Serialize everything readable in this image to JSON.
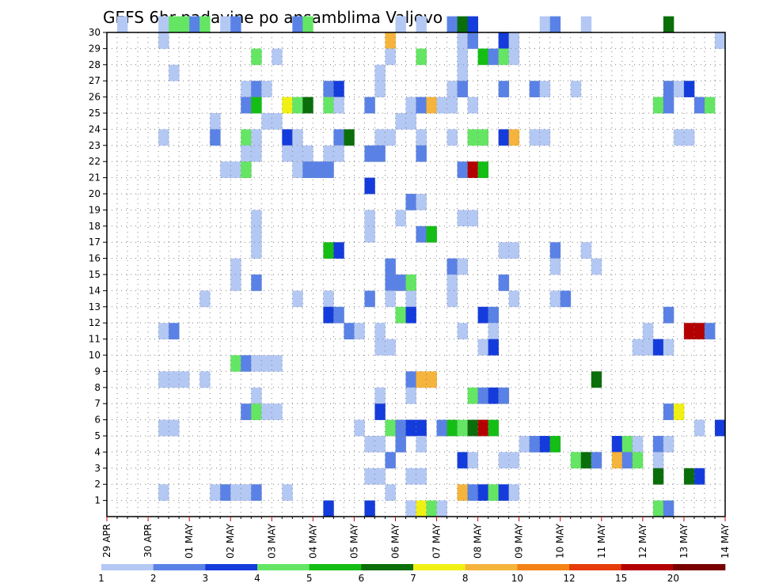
{
  "chart_data": {
    "type": "heatmap",
    "title": "GEFS 6hr padavine po ansamblima Valjevo",
    "xlabel": "",
    "ylabel": "",
    "x_ticks": [
      "29 APR",
      "30 APR",
      "01 MAY",
      "02 MAY",
      "03 MAY",
      "04 MAY",
      "05 MAY",
      "06 MAY",
      "07 MAY",
      "08 MAY",
      "09 MAY",
      "10 MAY",
      "11 MAY",
      "12 MAY",
      "13 MAY",
      "14 MAY"
    ],
    "y_ticks": [
      "1",
      "2",
      "3",
      "4",
      "5",
      "6",
      "7",
      "8",
      "9",
      "10",
      "11",
      "12",
      "13",
      "14",
      "15",
      "16",
      "17",
      "18",
      "19",
      "20",
      "21",
      "22",
      "23",
      "24",
      "25",
      "26",
      "27",
      "28",
      "29",
      "30"
    ],
    "x_range": [
      0,
      60
    ],
    "y_range": [
      0,
      30
    ],
    "grid": true,
    "colorbar": {
      "labels": [
        "1",
        "2",
        "3",
        "4",
        "5",
        "6",
        "7",
        "8",
        "10",
        "12",
        "15",
        "20"
      ],
      "colors": [
        "#b4c8f4",
        "#5a82e6",
        "#143cdc",
        "#64e664",
        "#14be14",
        "#0a6e0a",
        "#f0f014",
        "#f5b43c",
        "#f58214",
        "#e63c0a",
        "#b40000",
        "#7a0000"
      ]
    },
    "cells": [
      [
        1,
        30,
        0
      ],
      [
        5,
        30,
        0
      ],
      [
        6,
        30,
        3
      ],
      [
        7,
        30,
        3
      ],
      [
        8,
        30,
        1
      ],
      [
        9,
        30,
        3
      ],
      [
        11,
        30,
        0
      ],
      [
        12,
        30,
        1
      ],
      [
        18,
        30,
        1
      ],
      [
        19,
        30,
        3
      ],
      [
        28,
        30,
        0
      ],
      [
        30,
        30,
        0
      ],
      [
        33,
        30,
        1
      ],
      [
        34,
        30,
        5
      ],
      [
        35,
        30,
        2
      ],
      [
        42,
        30,
        0
      ],
      [
        43,
        30,
        1
      ],
      [
        46,
        30,
        0
      ],
      [
        54,
        30,
        5
      ],
      [
        5,
        29,
        0
      ],
      [
        27,
        29,
        7
      ],
      [
        34,
        29,
        0
      ],
      [
        35,
        29,
        1
      ],
      [
        38,
        29,
        2
      ],
      [
        39,
        29,
        0
      ],
      [
        59,
        29,
        0
      ],
      [
        14,
        28,
        3
      ],
      [
        16,
        28,
        0
      ],
      [
        27,
        28,
        0
      ],
      [
        30,
        28,
        3
      ],
      [
        34,
        28,
        0
      ],
      [
        36,
        28,
        4
      ],
      [
        37,
        28,
        1
      ],
      [
        38,
        28,
        3
      ],
      [
        39,
        28,
        0
      ],
      [
        6,
        27,
        0
      ],
      [
        26,
        27,
        0
      ],
      [
        34,
        27,
        0
      ],
      [
        13,
        26,
        0
      ],
      [
        14,
        26,
        1
      ],
      [
        15,
        26,
        0
      ],
      [
        21,
        26,
        1
      ],
      [
        22,
        26,
        2
      ],
      [
        26,
        26,
        0
      ],
      [
        33,
        26,
        0
      ],
      [
        34,
        26,
        1
      ],
      [
        38,
        26,
        1
      ],
      [
        41,
        26,
        1
      ],
      [
        42,
        26,
        0
      ],
      [
        45,
        26,
        0
      ],
      [
        54,
        26,
        1
      ],
      [
        55,
        26,
        0
      ],
      [
        56,
        26,
        2
      ],
      [
        13,
        25,
        1
      ],
      [
        14,
        25,
        4
      ],
      [
        17,
        25,
        6
      ],
      [
        18,
        25,
        3
      ],
      [
        19,
        25,
        5
      ],
      [
        21,
        25,
        3
      ],
      [
        22,
        25,
        0
      ],
      [
        25,
        25,
        1
      ],
      [
        29,
        25,
        0
      ],
      [
        30,
        25,
        1
      ],
      [
        31,
        25,
        7
      ],
      [
        32,
        25,
        0
      ],
      [
        33,
        25,
        0
      ],
      [
        35,
        25,
        0
      ],
      [
        53,
        25,
        3
      ],
      [
        54,
        25,
        1
      ],
      [
        57,
        25,
        1
      ],
      [
        58,
        25,
        3
      ],
      [
        10,
        24,
        0
      ],
      [
        15,
        24,
        0
      ],
      [
        16,
        24,
        0
      ],
      [
        28,
        24,
        0
      ],
      [
        29,
        24,
        0
      ],
      [
        5,
        23,
        0
      ],
      [
        10,
        23,
        1
      ],
      [
        13,
        23,
        3
      ],
      [
        14,
        23,
        0
      ],
      [
        17,
        23,
        2
      ],
      [
        18,
        23,
        0
      ],
      [
        22,
        23,
        1
      ],
      [
        23,
        23,
        5
      ],
      [
        26,
        23,
        0
      ],
      [
        27,
        23,
        0
      ],
      [
        30,
        23,
        0
      ],
      [
        33,
        23,
        0
      ],
      [
        35,
        23,
        3
      ],
      [
        36,
        23,
        3
      ],
      [
        38,
        23,
        2
      ],
      [
        39,
        23,
        7
      ],
      [
        41,
        23,
        0
      ],
      [
        42,
        23,
        0
      ],
      [
        55,
        23,
        0
      ],
      [
        56,
        23,
        0
      ],
      [
        13,
        22,
        0
      ],
      [
        14,
        22,
        0
      ],
      [
        17,
        22,
        0
      ],
      [
        18,
        22,
        0
      ],
      [
        19,
        22,
        0
      ],
      [
        21,
        22,
        0
      ],
      [
        22,
        22,
        0
      ],
      [
        25,
        22,
        1
      ],
      [
        26,
        22,
        1
      ],
      [
        30,
        22,
        1
      ],
      [
        11,
        21,
        0
      ],
      [
        12,
        21,
        0
      ],
      [
        13,
        21,
        3
      ],
      [
        18,
        21,
        0
      ],
      [
        19,
        21,
        1
      ],
      [
        20,
        21,
        1
      ],
      [
        21,
        21,
        1
      ],
      [
        34,
        21,
        1
      ],
      [
        35,
        21,
        10
      ],
      [
        36,
        21,
        4
      ],
      [
        25,
        20,
        2
      ],
      [
        29,
        19,
        1
      ],
      [
        30,
        19,
        0
      ],
      [
        14,
        18,
        0
      ],
      [
        25,
        18,
        0
      ],
      [
        28,
        18,
        0
      ],
      [
        34,
        18,
        0
      ],
      [
        35,
        18,
        0
      ],
      [
        14,
        17,
        0
      ],
      [
        25,
        17,
        0
      ],
      [
        30,
        17,
        1
      ],
      [
        31,
        17,
        4
      ],
      [
        14,
        16,
        0
      ],
      [
        21,
        16,
        4
      ],
      [
        22,
        16,
        2
      ],
      [
        38,
        16,
        0
      ],
      [
        39,
        16,
        0
      ],
      [
        43,
        16,
        1
      ],
      [
        46,
        16,
        0
      ],
      [
        12,
        15,
        0
      ],
      [
        27,
        15,
        1
      ],
      [
        33,
        15,
        1
      ],
      [
        34,
        15,
        0
      ],
      [
        43,
        15,
        0
      ],
      [
        47,
        15,
        0
      ],
      [
        12,
        14,
        0
      ],
      [
        14,
        14,
        1
      ],
      [
        27,
        14,
        1
      ],
      [
        28,
        14,
        1
      ],
      [
        29,
        14,
        3
      ],
      [
        33,
        14,
        0
      ],
      [
        38,
        14,
        1
      ],
      [
        9,
        13,
        0
      ],
      [
        18,
        13,
        0
      ],
      [
        21,
        13,
        0
      ],
      [
        25,
        13,
        1
      ],
      [
        27,
        13,
        0
      ],
      [
        29,
        13,
        0
      ],
      [
        33,
        13,
        0
      ],
      [
        39,
        13,
        0
      ],
      [
        43,
        13,
        0
      ],
      [
        44,
        13,
        1
      ],
      [
        21,
        12,
        2
      ],
      [
        22,
        12,
        1
      ],
      [
        28,
        12,
        3
      ],
      [
        29,
        12,
        2
      ],
      [
        36,
        12,
        2
      ],
      [
        37,
        12,
        1
      ],
      [
        54,
        12,
        1
      ],
      [
        5,
        11,
        0
      ],
      [
        6,
        11,
        1
      ],
      [
        23,
        11,
        1
      ],
      [
        24,
        11,
        0
      ],
      [
        26,
        11,
        0
      ],
      [
        34,
        11,
        0
      ],
      [
        37,
        11,
        0
      ],
      [
        52,
        11,
        0
      ],
      [
        56,
        11,
        10
      ],
      [
        57,
        11,
        10
      ],
      [
        58,
        11,
        1
      ],
      [
        26,
        10,
        0
      ],
      [
        27,
        10,
        0
      ],
      [
        36,
        10,
        0
      ],
      [
        37,
        10,
        2
      ],
      [
        51,
        10,
        0
      ],
      [
        52,
        10,
        0
      ],
      [
        53,
        10,
        2
      ],
      [
        54,
        10,
        0
      ],
      [
        12,
        9,
        3
      ],
      [
        13,
        9,
        1
      ],
      [
        14,
        9,
        0
      ],
      [
        15,
        9,
        0
      ],
      [
        16,
        9,
        0
      ],
      [
        5,
        8,
        0
      ],
      [
        6,
        8,
        0
      ],
      [
        7,
        8,
        0
      ],
      [
        9,
        8,
        0
      ],
      [
        29,
        8,
        1
      ],
      [
        30,
        8,
        7
      ],
      [
        31,
        8,
        7
      ],
      [
        47,
        8,
        5
      ],
      [
        14,
        7,
        0
      ],
      [
        26,
        7,
        0
      ],
      [
        29,
        7,
        0
      ],
      [
        35,
        7,
        3
      ],
      [
        36,
        7,
        1
      ],
      [
        37,
        7,
        2
      ],
      [
        38,
        7,
        1
      ],
      [
        13,
        6,
        1
      ],
      [
        14,
        6,
        3
      ],
      [
        15,
        6,
        0
      ],
      [
        16,
        6,
        0
      ],
      [
        26,
        6,
        2
      ],
      [
        54,
        6,
        1
      ],
      [
        55,
        6,
        6
      ],
      [
        5,
        5,
        0
      ],
      [
        6,
        5,
        0
      ],
      [
        24,
        5,
        0
      ],
      [
        27,
        5,
        3
      ],
      [
        28,
        5,
        1
      ],
      [
        29,
        5,
        2
      ],
      [
        30,
        5,
        2
      ],
      [
        32,
        5,
        1
      ],
      [
        33,
        5,
        4
      ],
      [
        34,
        5,
        3
      ],
      [
        35,
        5,
        5
      ],
      [
        36,
        5,
        10
      ],
      [
        37,
        5,
        4
      ],
      [
        57,
        5,
        0
      ],
      [
        59,
        5,
        2
      ],
      [
        25,
        4,
        0
      ],
      [
        26,
        4,
        0
      ],
      [
        28,
        4,
        1
      ],
      [
        30,
        4,
        0
      ],
      [
        40,
        4,
        0
      ],
      [
        41,
        4,
        1
      ],
      [
        42,
        4,
        2
      ],
      [
        43,
        4,
        4
      ],
      [
        49,
        4,
        2
      ],
      [
        50,
        4,
        3
      ],
      [
        51,
        4,
        0
      ],
      [
        53,
        4,
        1
      ],
      [
        54,
        4,
        0
      ],
      [
        27,
        3,
        1
      ],
      [
        34,
        3,
        2
      ],
      [
        35,
        3,
        0
      ],
      [
        38,
        3,
        0
      ],
      [
        39,
        3,
        0
      ],
      [
        45,
        3,
        3
      ],
      [
        46,
        3,
        5
      ],
      [
        47,
        3,
        1
      ],
      [
        49,
        3,
        7
      ],
      [
        50,
        3,
        1
      ],
      [
        51,
        3,
        3
      ],
      [
        53,
        3,
        0
      ],
      [
        25,
        2,
        0
      ],
      [
        26,
        2,
        0
      ],
      [
        29,
        2,
        0
      ],
      [
        30,
        2,
        0
      ],
      [
        53,
        2,
        5
      ],
      [
        56,
        2,
        5
      ],
      [
        57,
        2,
        2
      ],
      [
        5,
        1,
        0
      ],
      [
        10,
        1,
        0
      ],
      [
        11,
        1,
        1
      ],
      [
        12,
        1,
        0
      ],
      [
        13,
        1,
        0
      ],
      [
        14,
        1,
        1
      ],
      [
        17,
        1,
        0
      ],
      [
        27,
        1,
        0
      ],
      [
        34,
        1,
        7
      ],
      [
        35,
        1,
        1
      ],
      [
        36,
        1,
        2
      ],
      [
        37,
        1,
        3
      ],
      [
        38,
        1,
        2
      ],
      [
        39,
        1,
        0
      ],
      [
        21,
        0,
        2
      ],
      [
        25,
        0,
        2
      ],
      [
        29,
        0,
        0
      ],
      [
        30,
        0,
        6
      ],
      [
        31,
        0,
        3
      ],
      [
        32,
        0,
        0
      ],
      [
        53,
        0,
        3
      ],
      [
        54,
        0,
        1
      ]
    ]
  }
}
